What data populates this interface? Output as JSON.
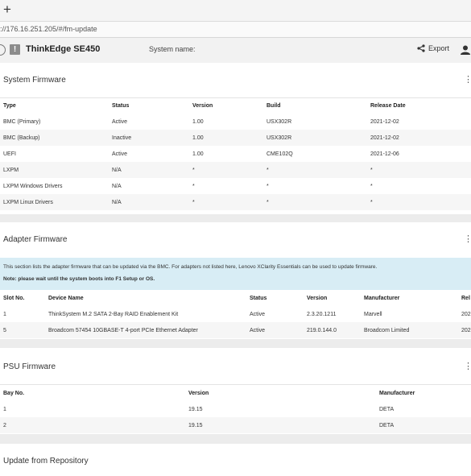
{
  "browser": {
    "new_tab": "+",
    "url": "://176.16.251.205/#/fm-update"
  },
  "header": {
    "title": "ThinkEdge SE450",
    "system_name_label": "System name:",
    "export_label": "Export",
    "warning_glyph": "!"
  },
  "system_firmware": {
    "title": "System Firmware",
    "columns": [
      "Type",
      "Status",
      "Version",
      "Build",
      "Release Date"
    ],
    "rows": [
      [
        "BMC (Primary)",
        "Active",
        "1.00",
        "USX302R",
        "2021-12-02"
      ],
      [
        "BMC (Backup)",
        "Inactive",
        "1.00",
        "USX302R",
        "2021-12-02"
      ],
      [
        "UEFI",
        "Active",
        "1.00",
        "CME102Q",
        "2021-12-06"
      ],
      [
        "LXPM",
        "N/A",
        "*",
        "*",
        "*"
      ],
      [
        "LXPM Windows Drivers",
        "N/A",
        "*",
        "*",
        "*"
      ],
      [
        "LXPM Linux Drivers",
        "N/A",
        "*",
        "*",
        "*"
      ]
    ]
  },
  "adapter_firmware": {
    "title": "Adapter Firmware",
    "info_text": "This section lists the adapter firmware that can be updated via the BMC. For adapters not listed here, Lenovo XClarity Essentials can be used to update firmware.",
    "note_text": "Note: please wait until the system boots into F1 Setup or OS.",
    "columns": [
      "Slot No.",
      "Device Name",
      "Status",
      "Version",
      "Manufacturer",
      "Rel"
    ],
    "rows": [
      [
        "1",
        "ThinkSystem M.2 SATA 2-Bay RAID Enablement Kit",
        "Active",
        "2.3.20.1211",
        "Marvell",
        "202"
      ],
      [
        "5",
        "Broadcom 57454 10GBASE-T 4-port PCIe Ethernet Adapter",
        "Active",
        "219.0.144.0",
        "Broadcom Limited",
        "202"
      ]
    ]
  },
  "psu_firmware": {
    "title": "PSU Firmware",
    "columns": [
      "Bay No.",
      "Version",
      "Manufacturer"
    ],
    "rows": [
      [
        "1",
        "19.15",
        "DETA"
      ],
      [
        "2",
        "19.15",
        "DETA"
      ]
    ]
  },
  "repository": {
    "title": "Update from Repository"
  },
  "colors": {
    "info_bg": "#d8edf5",
    "row_shade": "#f6f6f6",
    "header_bg": "#f2f2f2"
  }
}
